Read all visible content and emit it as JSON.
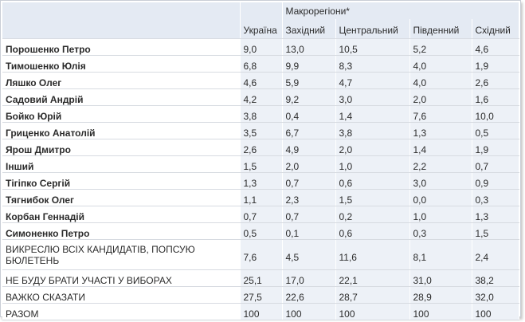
{
  "header": {
    "group_label": "Макрорегіони*",
    "columns": [
      "Україна",
      "Західний",
      "Центральний",
      "Південний",
      "Східний"
    ]
  },
  "rows": [
    {
      "name": "Порошенко Петро",
      "bold": true,
      "values": [
        "9,0",
        "13,0",
        "10,5",
        "5,2",
        "4,6"
      ]
    },
    {
      "name": "Тимошенко Юлія",
      "bold": true,
      "values": [
        "6,8",
        "9,9",
        "8,3",
        "4,0",
        "1,9"
      ]
    },
    {
      "name": "Ляшко Олег",
      "bold": true,
      "values": [
        "4,6",
        "5,9",
        "4,7",
        "4,0",
        "2,6"
      ]
    },
    {
      "name": "Садовий Андрій",
      "bold": true,
      "values": [
        "4,2",
        "9,2",
        "3,0",
        "2,0",
        "1,6"
      ]
    },
    {
      "name": "Бойко Юрій",
      "bold": true,
      "values": [
        "3,8",
        "0,4",
        "1,4",
        "7,6",
        "10,0"
      ]
    },
    {
      "name": "Гриценко Анатолій",
      "bold": true,
      "values": [
        "3,5",
        "6,7",
        "3,8",
        "1,3",
        "0,5"
      ]
    },
    {
      "name": "Ярош Дмитро",
      "bold": true,
      "values": [
        "2,6",
        "4,9",
        "2,0",
        "1,4",
        "1,9"
      ]
    },
    {
      "name": "Інший",
      "bold": true,
      "values": [
        "1,5",
        "2,0",
        "1,0",
        "2,2",
        "0,7"
      ]
    },
    {
      "name": "Тігіпко Сергій",
      "bold": true,
      "values": [
        "1,3",
        "0,7",
        "0,6",
        "3,0",
        "0,9"
      ]
    },
    {
      "name": "Тягнибок Олег",
      "bold": true,
      "values": [
        "1,1",
        "2,3",
        "1,5",
        "0,0",
        "0,3"
      ]
    },
    {
      "name": "Корбан Геннадій",
      "bold": true,
      "values": [
        "0,7",
        "0,7",
        "0,2",
        "1,0",
        "1,3"
      ]
    },
    {
      "name": "Симоненко Петро",
      "bold": true,
      "values": [
        "0,5",
        "0,1",
        "0,6",
        "0,3",
        "1,5"
      ]
    },
    {
      "name": "ВИКРЕСЛЮ ВСІХ КАНДИДАТІВ, ПОПСУЮ БЮЛЕТЕНЬ",
      "bold": false,
      "values": [
        "7,6",
        "4,5",
        "11,6",
        "8,1",
        "2,4"
      ]
    },
    {
      "name": "НЕ БУДУ БРАТИ УЧАСТІ У ВИБОРАХ",
      "bold": false,
      "values": [
        "25,1",
        "17,0",
        "22,1",
        "31,0",
        "38,2"
      ]
    },
    {
      "name": "ВАЖКО СКАЗАТИ",
      "bold": false,
      "values": [
        "27,5",
        "22,6",
        "28,7",
        "28,9",
        "32,0"
      ]
    },
    {
      "name": "РАЗОМ",
      "bold": false,
      "values": [
        "100",
        "100",
        "100",
        "100",
        "100"
      ]
    }
  ]
}
